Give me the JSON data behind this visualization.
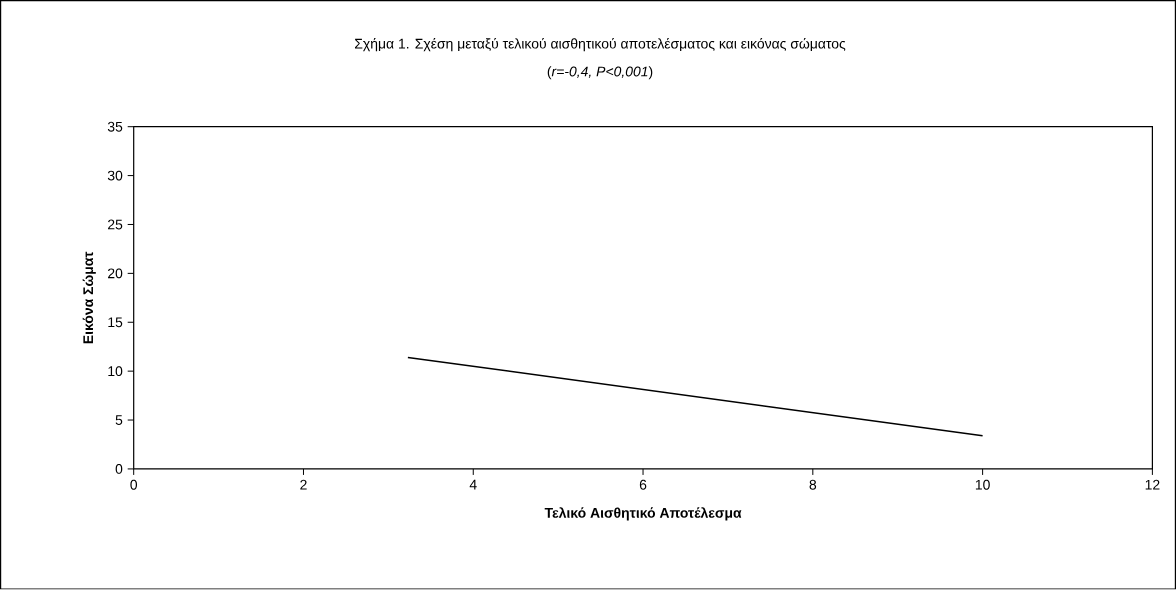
{
  "chart_data": {
    "type": "line",
    "title": "Σχήμα 1. Σχέση μεταξύ τελικού αισθητικού αποτελέσματος και εικόνας σώματος",
    "subtitle": "(*r=-0,4, P<0,001*)",
    "xlabel": "Τελικό Αισθητικό Αποτέλεσμα",
    "ylabel": "Εικόνα Σώματ",
    "x": [
      3.23,
      10.0
    ],
    "series": [
      {
        "color": "#000000",
        "values": [
          11.4,
          3.4
        ]
      }
    ],
    "xlim": [
      0,
      12
    ],
    "xticks": [
      0,
      2,
      4,
      6,
      8,
      10,
      12
    ],
    "ylim": [
      0,
      35
    ],
    "yticks": [
      0,
      5,
      10,
      15,
      20,
      25,
      30,
      35
    ],
    "marker": "none",
    "line_style": "solid",
    "grid": false
  }
}
